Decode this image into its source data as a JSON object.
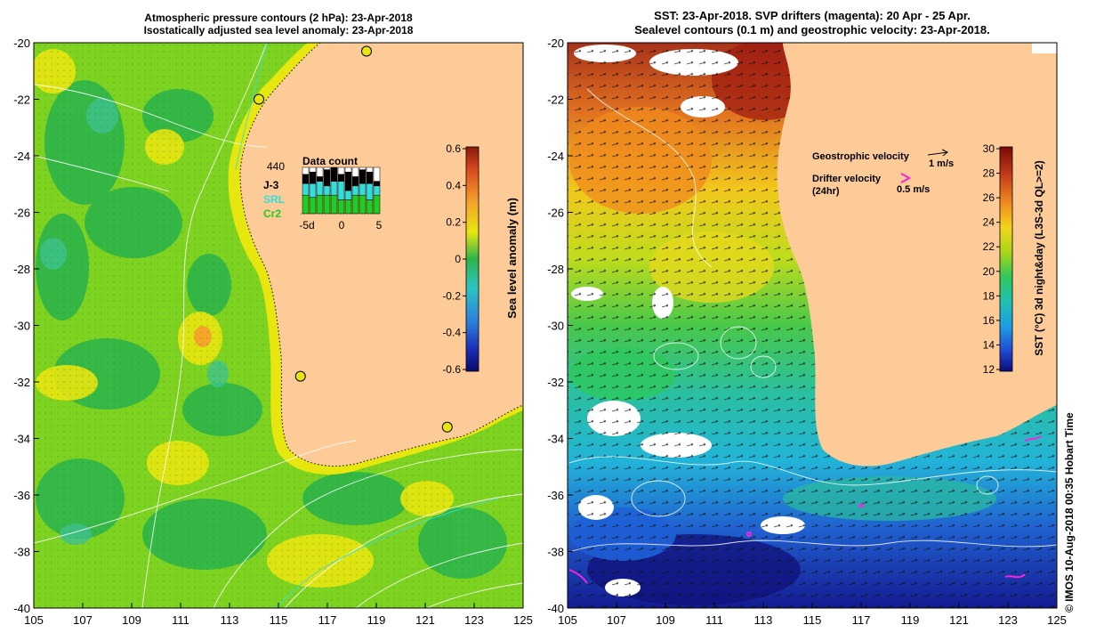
{
  "left_panel": {
    "title_line1": "Atmospheric pressure contours (2 hPa): 23-Apr-2018",
    "title_line2": "Isostatically adjusted sea level anomaly: 23-Apr-2018",
    "lat_ticks": [
      "-20",
      "-22",
      "-24",
      "-26",
      "-28",
      "-30",
      "-32",
      "-34",
      "-36",
      "-38",
      "-40"
    ],
    "lon_ticks": [
      "105",
      "107",
      "109",
      "111",
      "113",
      "115",
      "117",
      "119",
      "121",
      "123",
      "125"
    ],
    "colorbar": {
      "label": "Sea level anomaly (m)",
      "ticks": [
        "0.6",
        "0.4",
        "0.2",
        "0",
        "-0.2",
        "-0.4",
        "-0.6"
      ]
    },
    "data_count": {
      "title": "Data count",
      "total": "440",
      "legend": [
        {
          "label": "J-3",
          "color": "#000000"
        },
        {
          "label": "SRL",
          "color": "#33dddd"
        },
        {
          "label": "Cr2",
          "color": "#22cc22"
        }
      ],
      "axis_labels": [
        "-5d",
        "0",
        "5"
      ],
      "bars": [
        {
          "white": 0.15,
          "black": 0.2,
          "cyan": 0.25,
          "green": 0.4
        },
        {
          "white": 0.1,
          "black": 0.25,
          "cyan": 0.3,
          "green": 0.35
        },
        {
          "white": 0.2,
          "black": 0.1,
          "cyan": 0.3,
          "green": 0.4
        },
        {
          "white": 0.05,
          "black": 0.35,
          "cyan": 0.2,
          "green": 0.4
        },
        {
          "white": 0.0,
          "black": 0.3,
          "cyan": 0.3,
          "green": 0.4
        },
        {
          "white": 0.15,
          "black": 0.15,
          "cyan": 0.4,
          "green": 0.3
        },
        {
          "white": 0.1,
          "black": 0.4,
          "cyan": 0.2,
          "green": 0.3
        },
        {
          "white": 0.2,
          "black": 0.2,
          "cyan": 0.2,
          "green": 0.4
        },
        {
          "white": 0.05,
          "black": 0.3,
          "cyan": 0.25,
          "green": 0.4
        },
        {
          "white": 0.1,
          "black": 0.25,
          "cyan": 0.35,
          "green": 0.3
        },
        {
          "white": 0.3,
          "black": 0.1,
          "cyan": 0.2,
          "green": 0.4
        }
      ]
    },
    "tide_gauges": [
      {
        "lon": 118.6,
        "lat": -20.3
      },
      {
        "lon": 114.2,
        "lat": -22.0
      },
      {
        "lon": 115.9,
        "lat": -31.8
      },
      {
        "lon": 121.9,
        "lat": -33.6
      }
    ],
    "ssl_colors": {
      "land": "#fdcb98",
      "low": "#2db54a",
      "mid": "#7ed321",
      "high": "#e8e60f",
      "peak": "#f4a52a"
    }
  },
  "right_panel": {
    "title_line1": "SST: 23-Apr-2018. SVP drifters (magenta): 20 Apr - 25 Apr.",
    "title_line2": "Sealevel contours (0.1 m) and geostrophic velocity: 23-Apr-2018.",
    "lat_ticks": [
      "-20",
      "-22",
      "-24",
      "-26",
      "-28",
      "-30",
      "-32",
      "-34",
      "-36",
      "-38",
      "-40"
    ],
    "lon_ticks": [
      "105",
      "107",
      "109",
      "111",
      "113",
      "115",
      "117",
      "119",
      "121",
      "123",
      "125"
    ],
    "geostrophic_label": "Geostrophic velocity",
    "geostrophic_scale": "1 m/s",
    "drifter_label_line1": "Drifter velocity",
    "drifter_label_line2": "(24hr)",
    "drifter_scale": "0.5 m/s",
    "drifter_color": "#ff22dd",
    "colorbar": {
      "label": "SST (°C) 3d night&day (L3S-3d QL>=2)",
      "ticks": [
        "30",
        "28",
        "26",
        "24",
        "22",
        "20",
        "18",
        "16",
        "14",
        "12"
      ]
    }
  },
  "footer": {
    "credit": "© IMOS 10-Aug-2018 00:35 Hobart Time"
  }
}
